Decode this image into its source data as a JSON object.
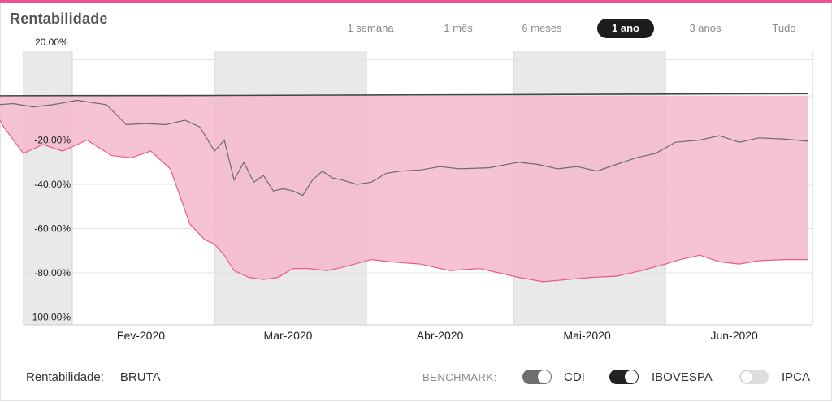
{
  "header": {
    "title": "Rentabilidade"
  },
  "ranges": [
    {
      "label": "1 semana",
      "active": false
    },
    {
      "label": "1 mês",
      "active": false
    },
    {
      "label": "6 meses",
      "active": false
    },
    {
      "label": "1 ano",
      "active": true
    },
    {
      "label": "3 anos",
      "active": false
    },
    {
      "label": "Tudo",
      "active": false
    }
  ],
  "footer": {
    "rent_label": "Rentabilidade:",
    "rent_value": "BRUTA",
    "benchmark_label": "BENCHMARK:",
    "benchmarks": [
      {
        "name": "CDI",
        "enabled": true,
        "color": "#6e6e6e"
      },
      {
        "name": "IBOVESPA",
        "enabled": true,
        "color": "#222222"
      },
      {
        "name": "IPCA",
        "enabled": false,
        "color": "#dddddd"
      }
    ]
  },
  "colors": {
    "accent": "#ee5390",
    "area_fill": "#f5b8cc",
    "fund_line": "#e85a8a",
    "ibov_line": "#6b6b6b",
    "cdi_line": "#444444",
    "band_shade": "#e9e9e9"
  },
  "chart_data": {
    "type": "area",
    "title": "Rentabilidade",
    "xlabel": "",
    "ylabel": "",
    "x_ticks": [
      "Fev-2020",
      "Mar-2020",
      "Abr-2020",
      "Mai-2020",
      "Jun-2020"
    ],
    "y_ticks": [
      "20.00%",
      "-20.00%",
      "-40.00%",
      "-60.00%",
      "-80.00%",
      "-100.00%"
    ],
    "ylim": [
      -100,
      20
    ],
    "grid": true,
    "shaded_months": [
      "Mar-2020",
      "Mai-2020"
    ],
    "series": [
      {
        "name": "CDI",
        "x": [
          "2020-01-06",
          "2020-02-03",
          "2020-03-02",
          "2020-04-01",
          "2020-05-01",
          "2020-06-01",
          "2020-06-30"
        ],
        "values": [
          0.0,
          0.1,
          0.2,
          0.4,
          0.6,
          0.8,
          1.0
        ]
      },
      {
        "name": "IBOVESPA",
        "x": [
          "2020-01-06",
          "2020-01-08",
          "2020-01-11",
          "2020-01-14",
          "2020-01-17",
          "2020-01-20",
          "2020-01-24",
          "2020-01-28",
          "2020-02-02",
          "2020-02-08",
          "2020-02-12",
          "2020-02-16",
          "2020-02-20",
          "2020-02-24",
          "2020-02-27",
          "2020-03-01",
          "2020-03-03",
          "2020-03-05",
          "2020-03-07",
          "2020-03-09",
          "2020-03-11",
          "2020-03-13",
          "2020-03-15",
          "2020-03-17",
          "2020-03-19",
          "2020-03-21",
          "2020-03-23",
          "2020-03-25",
          "2020-03-27",
          "2020-03-30",
          "2020-04-02",
          "2020-04-05",
          "2020-04-08",
          "2020-04-12",
          "2020-04-16",
          "2020-04-20",
          "2020-04-26",
          "2020-05-02",
          "2020-05-06",
          "2020-05-10",
          "2020-05-14",
          "2020-05-18",
          "2020-05-22",
          "2020-05-26",
          "2020-05-30",
          "2020-06-03",
          "2020-06-08",
          "2020-06-12",
          "2020-06-16",
          "2020-06-20",
          "2020-06-25",
          "2020-06-30"
        ],
        "values": [
          0.5,
          0.0,
          -2.0,
          -1.0,
          -4.0,
          -3.5,
          -5.0,
          -4.0,
          -2.0,
          -4.0,
          -13.0,
          -12.5,
          -13.0,
          -11.0,
          -14.0,
          -25.0,
          -20.0,
          -38.0,
          -30.0,
          -39.0,
          -36.0,
          -43.0,
          -42.0,
          -43.0,
          -45.0,
          -38.0,
          -34.0,
          -37.0,
          -38.0,
          -40.0,
          -39.0,
          -35.0,
          -34.0,
          -33.5,
          -32.0,
          -33.0,
          -32.5,
          -30.0,
          -31.0,
          -33.0,
          -32.0,
          -34.0,
          -31.0,
          -28.0,
          -26.0,
          -21.0,
          -20.0,
          -18.0,
          -21.0,
          -19.0,
          -19.5,
          -20.5
        ]
      },
      {
        "name": "",
        "x": [
          "2020-01-06",
          "2020-01-09",
          "2020-01-12",
          "2020-01-15",
          "2020-01-18",
          "2020-01-22",
          "2020-01-26",
          "2020-01-30",
          "2020-02-04",
          "2020-02-09",
          "2020-02-13",
          "2020-02-17",
          "2020-02-21",
          "2020-02-25",
          "2020-02-28",
          "2020-03-01",
          "2020-03-03",
          "2020-03-05",
          "2020-03-08",
          "2020-03-11",
          "2020-03-14",
          "2020-03-17",
          "2020-03-20",
          "2020-03-24",
          "2020-03-28",
          "2020-04-02",
          "2020-04-06",
          "2020-04-12",
          "2020-04-18",
          "2020-04-24",
          "2020-04-28",
          "2020-05-02",
          "2020-05-07",
          "2020-05-12",
          "2020-05-17",
          "2020-05-22",
          "2020-05-27",
          "2020-06-01",
          "2020-06-04",
          "2020-06-08",
          "2020-06-12",
          "2020-06-16",
          "2020-06-20",
          "2020-06-25",
          "2020-06-30"
        ],
        "values": [
          0.0,
          -4.0,
          -5.5,
          -2.0,
          -14.0,
          -26.0,
          -22.0,
          -25.0,
          -20.0,
          -27.0,
          -28.0,
          -25.0,
          -33.0,
          -58.0,
          -65.0,
          -67.0,
          -72.0,
          -79.0,
          -82.0,
          -83.0,
          -82.0,
          -78.0,
          -78.0,
          -79.0,
          -77.0,
          -74.0,
          -75.0,
          -76.0,
          -79.0,
          -78.0,
          -80.0,
          -82.0,
          -84.0,
          -83.0,
          -82.0,
          -81.5,
          -79.0,
          -76.0,
          -74.0,
          -72.0,
          -75.0,
          -76.0,
          -74.5,
          -74.0,
          -74.0
        ]
      }
    ]
  }
}
